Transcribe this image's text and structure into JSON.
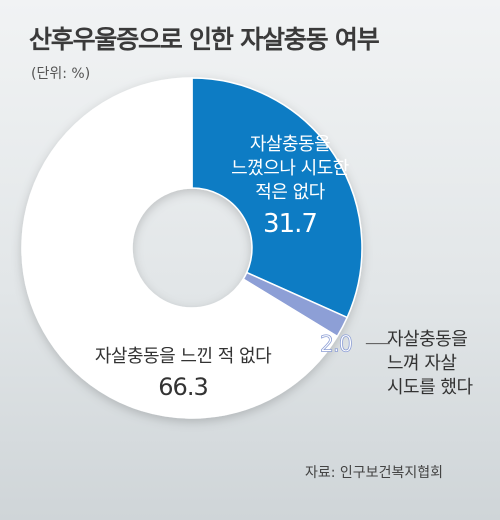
{
  "title": "산후우울증으로 인한 자살충동 여부",
  "unit": "(단위: %)",
  "source": "자료: 인구보건복지협회",
  "colors": {
    "felt_not_attempted": "#0b7cc4",
    "attempted": "#8d9fd6",
    "never_felt": "#ffffff"
  },
  "chart_data": {
    "type": "pie",
    "variant": "donut",
    "slices": [
      {
        "label_lines": [
          "자살충동을",
          "느꼈으나 시도한",
          "적은 없다"
        ],
        "value_text": "31.7",
        "value": 31.7,
        "color": "#0b7cc4"
      },
      {
        "label_lines": [
          "자살충동을",
          "느껴 자살",
          "시도를 했다"
        ],
        "value_text": "2.0",
        "value": 2.0,
        "color": "#8d9fd6"
      },
      {
        "label_lines": [
          "자살충동을 느낀 적 없다"
        ],
        "value_text": "66.3",
        "value": 66.3,
        "color": "#ffffff"
      }
    ]
  }
}
